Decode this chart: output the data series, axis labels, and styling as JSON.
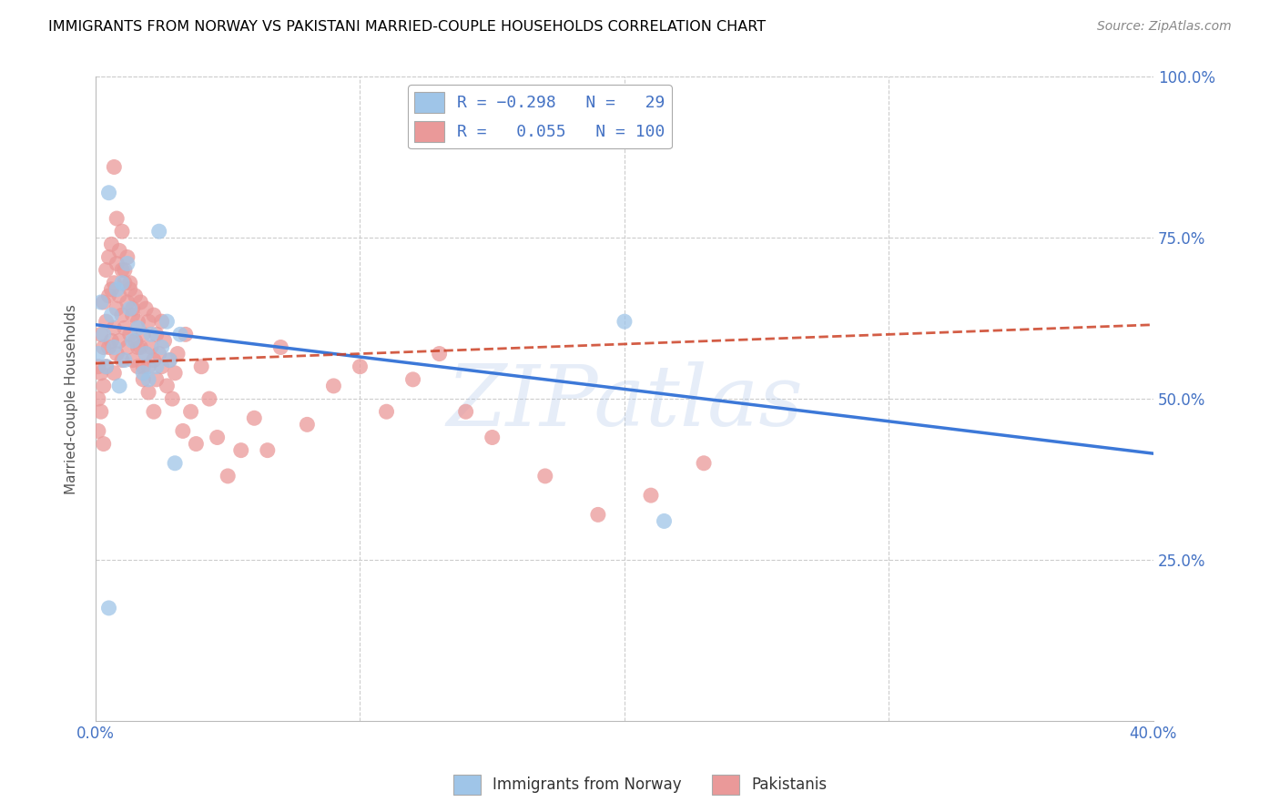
{
  "title": "IMMIGRANTS FROM NORWAY VS PAKISTANI MARRIED-COUPLE HOUSEHOLDS CORRELATION CHART",
  "source": "Source: ZipAtlas.com",
  "ylabel": "Married-couple Households",
  "legend_label1": "Immigrants from Norway",
  "legend_label2": "Pakistanis",
  "color_blue": "#9fc5e8",
  "color_pink": "#ea9999",
  "color_blue_line": "#3c78d8",
  "color_pink_line": "#cc4125",
  "watermark": "ZIPatlas",
  "norway_x": [
    0.001,
    0.002,
    0.003,
    0.004,
    0.005,
    0.006,
    0.007,
    0.008,
    0.009,
    0.01,
    0.011,
    0.012,
    0.013,
    0.014,
    0.016,
    0.018,
    0.019,
    0.02,
    0.021,
    0.023,
    0.024,
    0.025,
    0.027,
    0.028,
    0.03,
    0.032,
    0.2,
    0.215,
    0.005
  ],
  "norway_y": [
    0.57,
    0.65,
    0.6,
    0.55,
    0.82,
    0.63,
    0.58,
    0.67,
    0.52,
    0.68,
    0.56,
    0.71,
    0.64,
    0.59,
    0.61,
    0.54,
    0.57,
    0.53,
    0.6,
    0.55,
    0.76,
    0.58,
    0.62,
    0.56,
    0.4,
    0.6,
    0.62,
    0.31,
    0.175
  ],
  "pakistan_x": [
    0.001,
    0.001,
    0.001,
    0.002,
    0.002,
    0.002,
    0.003,
    0.003,
    0.003,
    0.003,
    0.004,
    0.004,
    0.004,
    0.005,
    0.005,
    0.005,
    0.006,
    0.006,
    0.006,
    0.007,
    0.007,
    0.007,
    0.008,
    0.008,
    0.008,
    0.009,
    0.009,
    0.01,
    0.01,
    0.01,
    0.011,
    0.011,
    0.012,
    0.012,
    0.013,
    0.013,
    0.014,
    0.014,
    0.015,
    0.015,
    0.016,
    0.016,
    0.017,
    0.017,
    0.018,
    0.018,
    0.019,
    0.019,
    0.02,
    0.02,
    0.021,
    0.022,
    0.022,
    0.023,
    0.023,
    0.024,
    0.025,
    0.025,
    0.026,
    0.027,
    0.028,
    0.029,
    0.03,
    0.031,
    0.033,
    0.034,
    0.036,
    0.038,
    0.04,
    0.043,
    0.046,
    0.05,
    0.055,
    0.06,
    0.065,
    0.07,
    0.08,
    0.09,
    0.1,
    0.11,
    0.12,
    0.13,
    0.14,
    0.15,
    0.17,
    0.19,
    0.21,
    0.23,
    0.007,
    0.008,
    0.009,
    0.01,
    0.011,
    0.012,
    0.013,
    0.014,
    0.016,
    0.018,
    0.02,
    0.022
  ],
  "pakistan_y": [
    0.55,
    0.5,
    0.45,
    0.6,
    0.54,
    0.48,
    0.65,
    0.58,
    0.52,
    0.43,
    0.7,
    0.62,
    0.55,
    0.72,
    0.66,
    0.58,
    0.74,
    0.67,
    0.59,
    0.68,
    0.61,
    0.54,
    0.71,
    0.64,
    0.57,
    0.66,
    0.59,
    0.7,
    0.63,
    0.56,
    0.68,
    0.61,
    0.65,
    0.58,
    0.67,
    0.6,
    0.63,
    0.56,
    0.66,
    0.59,
    0.62,
    0.55,
    0.65,
    0.58,
    0.6,
    0.53,
    0.64,
    0.57,
    0.62,
    0.55,
    0.58,
    0.63,
    0.56,
    0.6,
    0.53,
    0.57,
    0.62,
    0.55,
    0.59,
    0.52,
    0.56,
    0.5,
    0.54,
    0.57,
    0.45,
    0.6,
    0.48,
    0.43,
    0.55,
    0.5,
    0.44,
    0.38,
    0.42,
    0.47,
    0.42,
    0.58,
    0.46,
    0.52,
    0.55,
    0.48,
    0.53,
    0.57,
    0.48,
    0.44,
    0.38,
    0.32,
    0.35,
    0.4,
    0.86,
    0.78,
    0.73,
    0.76,
    0.7,
    0.72,
    0.68,
    0.64,
    0.58,
    0.55,
    0.51,
    0.48
  ],
  "xlim": [
    0.0,
    0.4
  ],
  "ylim": [
    0.0,
    1.0
  ],
  "norway_line_x0": 0.0,
  "norway_line_y0": 0.615,
  "norway_line_x1": 0.4,
  "norway_line_y1": 0.415,
  "pakistan_line_x0": 0.0,
  "pakistan_line_y0": 0.555,
  "pakistan_line_x1": 0.4,
  "pakistan_line_y1": 0.615,
  "bg_color": "#ffffff",
  "grid_color": "#cccccc",
  "title_color": "#000000",
  "tick_color": "#4472c4",
  "ylabel_color": "#555555"
}
